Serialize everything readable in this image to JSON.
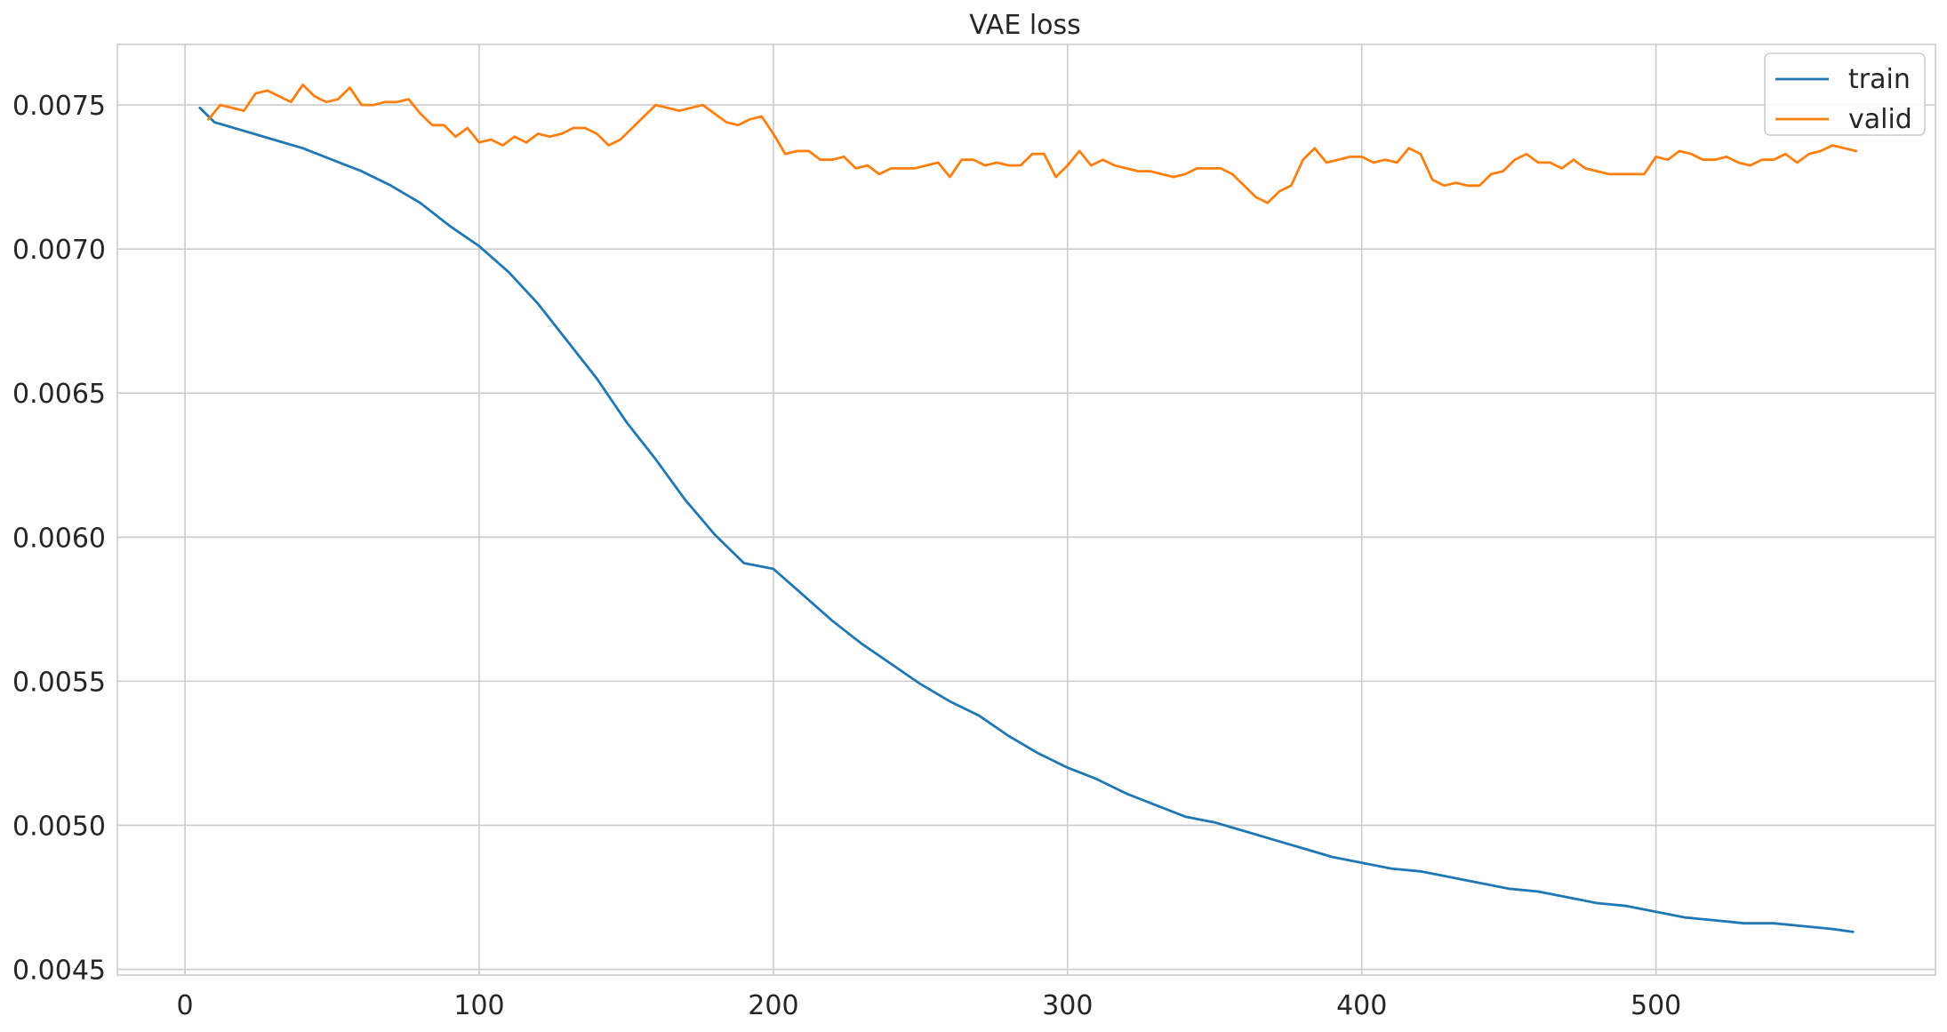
{
  "chart_data": {
    "type": "line",
    "title": "VAE loss",
    "xlabel": "",
    "ylabel": "",
    "xlim": [
      -23,
      595
    ],
    "ylim": [
      0.00448,
      0.00771
    ],
    "xticks": [
      0,
      100,
      200,
      300,
      400,
      500
    ],
    "xtick_labels": [
      "0",
      "100",
      "200",
      "300",
      "400",
      "500"
    ],
    "yticks": [
      0.0045,
      0.005,
      0.0055,
      0.006,
      0.0065,
      0.007,
      0.0075
    ],
    "ytick_labels": [
      "0.0045",
      "0.0050",
      "0.0055",
      "0.0060",
      "0.0065",
      "0.0070",
      "0.0075"
    ],
    "grid": true,
    "legend": {
      "position": "top-right",
      "entries": [
        "train",
        "valid"
      ]
    },
    "series": [
      {
        "name": "train",
        "color": "#1f77b4",
        "x": [
          5,
          10,
          20,
          30,
          40,
          50,
          60,
          70,
          80,
          90,
          100,
          110,
          120,
          130,
          140,
          150,
          160,
          170,
          180,
          190,
          200,
          210,
          220,
          230,
          240,
          250,
          260,
          270,
          280,
          290,
          300,
          310,
          320,
          330,
          340,
          350,
          360,
          370,
          380,
          390,
          400,
          410,
          420,
          430,
          440,
          450,
          460,
          470,
          480,
          490,
          500,
          510,
          520,
          530,
          540,
          550,
          560,
          567
        ],
        "y": [
          0.00749,
          0.00744,
          0.00741,
          0.00738,
          0.00735,
          0.00731,
          0.00727,
          0.00722,
          0.00716,
          0.00708,
          0.00701,
          0.00692,
          0.00681,
          0.00668,
          0.00655,
          0.0064,
          0.00627,
          0.00613,
          0.00601,
          0.00591,
          0.00589,
          0.0058,
          0.00571,
          0.00563,
          0.00556,
          0.00549,
          0.00543,
          0.00538,
          0.00531,
          0.00525,
          0.0052,
          0.00516,
          0.00511,
          0.00507,
          0.00503,
          0.00501,
          0.00498,
          0.00495,
          0.00492,
          0.00489,
          0.00487,
          0.00485,
          0.00484,
          0.00482,
          0.0048,
          0.00478,
          0.00477,
          0.00475,
          0.00473,
          0.00472,
          0.0047,
          0.00468,
          0.00467,
          0.00466,
          0.00466,
          0.00465,
          0.00464,
          0.00463
        ]
      },
      {
        "name": "valid",
        "color": "#ff7f0e",
        "x": [
          8,
          12,
          20,
          24,
          28,
          36,
          40,
          44,
          48,
          52,
          56,
          60,
          64,
          68,
          72,
          76,
          80,
          84,
          88,
          92,
          96,
          100,
          104,
          108,
          112,
          116,
          120,
          124,
          128,
          132,
          136,
          140,
          144,
          148,
          152,
          156,
          160,
          164,
          168,
          172,
          176,
          180,
          184,
          188,
          192,
          196,
          200,
          204,
          208,
          212,
          216,
          220,
          224,
          228,
          232,
          236,
          240,
          244,
          248,
          252,
          256,
          260,
          264,
          268,
          272,
          276,
          280,
          284,
          288,
          292,
          296,
          300,
          304,
          308,
          312,
          316,
          320,
          324,
          328,
          332,
          336,
          340,
          344,
          348,
          352,
          356,
          360,
          364,
          368,
          372,
          376,
          380,
          384,
          388,
          392,
          396,
          400,
          404,
          408,
          412,
          416,
          420,
          424,
          428,
          432,
          436,
          440,
          444,
          448,
          452,
          456,
          460,
          464,
          468,
          472,
          476,
          480,
          484,
          488,
          492,
          496,
          500,
          504,
          508,
          512,
          516,
          520,
          524,
          528,
          532,
          536,
          540,
          544,
          548,
          552,
          556,
          560,
          564,
          568
        ],
        "y": [
          0.00745,
          0.0075,
          0.00748,
          0.00754,
          0.00755,
          0.00751,
          0.00757,
          0.00753,
          0.00751,
          0.00752,
          0.00756,
          0.0075,
          0.0075,
          0.00751,
          0.00751,
          0.00752,
          0.00747,
          0.00743,
          0.00743,
          0.00739,
          0.00742,
          0.00737,
          0.00738,
          0.00736,
          0.00739,
          0.00737,
          0.0074,
          0.00739,
          0.0074,
          0.00742,
          0.00742,
          0.0074,
          0.00736,
          0.00738,
          0.00742,
          0.00746,
          0.0075,
          0.00749,
          0.00748,
          0.00749,
          0.0075,
          0.00747,
          0.00744,
          0.00743,
          0.00745,
          0.00746,
          0.0074,
          0.00733,
          0.00734,
          0.00734,
          0.00731,
          0.00731,
          0.00732,
          0.00728,
          0.00729,
          0.00726,
          0.00728,
          0.00728,
          0.00728,
          0.00729,
          0.0073,
          0.00725,
          0.00731,
          0.00731,
          0.00729,
          0.0073,
          0.00729,
          0.00729,
          0.00733,
          0.00733,
          0.00725,
          0.00729,
          0.00734,
          0.00729,
          0.00731,
          0.00729,
          0.00728,
          0.00727,
          0.00727,
          0.00726,
          0.00725,
          0.00726,
          0.00728,
          0.00728,
          0.00728,
          0.00726,
          0.00722,
          0.00718,
          0.00716,
          0.0072,
          0.00722,
          0.00731,
          0.00735,
          0.0073,
          0.00731,
          0.00732,
          0.00732,
          0.0073,
          0.00731,
          0.0073,
          0.00735,
          0.00733,
          0.00724,
          0.00722,
          0.00723,
          0.00722,
          0.00722,
          0.00726,
          0.00727,
          0.00731,
          0.00733,
          0.0073,
          0.0073,
          0.00728,
          0.00731,
          0.00728,
          0.00727,
          0.00726,
          0.00726,
          0.00726,
          0.00726,
          0.00732,
          0.00731,
          0.00734,
          0.00733,
          0.00731,
          0.00731,
          0.00732,
          0.0073,
          0.00729,
          0.00731,
          0.00731,
          0.00733,
          0.0073,
          0.00733,
          0.00734,
          0.00736,
          0.00735,
          0.00734
        ]
      }
    ]
  }
}
